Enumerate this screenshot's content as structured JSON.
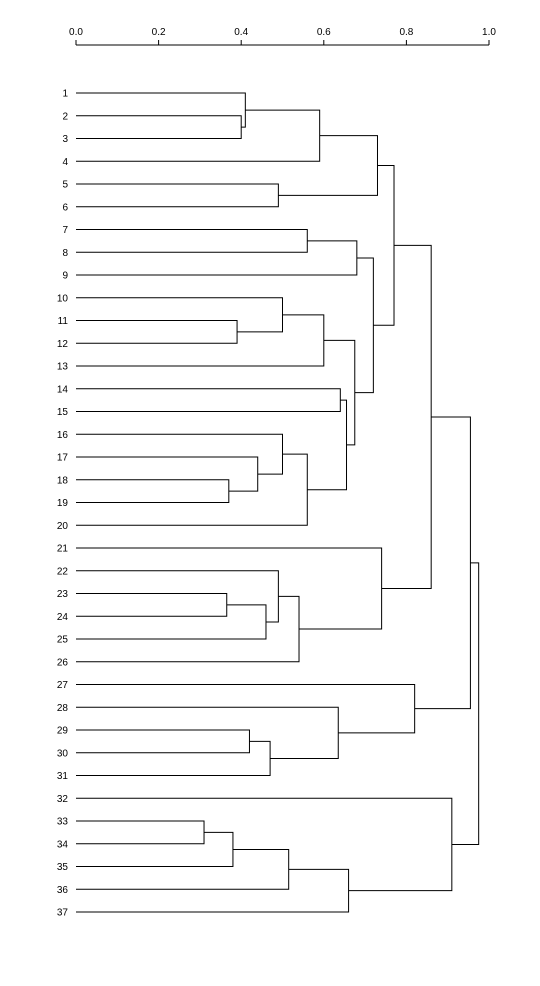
{
  "chart_data": {
    "type": "dendrogram",
    "orientation": "horizontal",
    "xlim": [
      0.0,
      1.0
    ],
    "axis_ticks": [
      "0.0",
      "0.2",
      "0.4",
      "0.6",
      "0.8",
      "1.0"
    ],
    "leaves": [
      "1",
      "2",
      "3",
      "4",
      "5",
      "6",
      "7",
      "8",
      "9",
      "10",
      "11",
      "12",
      "13",
      "14",
      "15",
      "16",
      "17",
      "18",
      "19",
      "20",
      "21",
      "22",
      "23",
      "24",
      "25",
      "26",
      "27",
      "28",
      "29",
      "30",
      "31",
      "32",
      "33",
      "34",
      "35",
      "36",
      "37"
    ],
    "merges": [
      {
        "id": "A",
        "left": "2",
        "right": "3",
        "height": 0.4
      },
      {
        "id": "B",
        "left": "1",
        "right": "A",
        "height": 0.41
      },
      {
        "id": "C",
        "left": "B",
        "right": "4",
        "height": 0.59
      },
      {
        "id": "D",
        "left": "5",
        "right": "6",
        "height": 0.49
      },
      {
        "id": "E",
        "left": "C",
        "right": "D",
        "height": 0.73
      },
      {
        "id": "F",
        "left": "7",
        "right": "8",
        "height": 0.56
      },
      {
        "id": "G",
        "left": "F",
        "right": "9",
        "height": 0.68
      },
      {
        "id": "H",
        "left": "11",
        "right": "12",
        "height": 0.39
      },
      {
        "id": "I",
        "left": "10",
        "right": "H",
        "height": 0.5
      },
      {
        "id": "J",
        "left": "I",
        "right": "13",
        "height": 0.6
      },
      {
        "id": "K",
        "left": "14",
        "right": "15",
        "height": 0.64
      },
      {
        "id": "L",
        "left": "18",
        "right": "19",
        "height": 0.37
      },
      {
        "id": "M",
        "left": "17",
        "right": "L",
        "height": 0.44
      },
      {
        "id": "N",
        "left": "16",
        "right": "M",
        "height": 0.5
      },
      {
        "id": "O",
        "left": "N",
        "right": "20",
        "height": 0.56
      },
      {
        "id": "P",
        "left": "K",
        "right": "O",
        "height": 0.655
      },
      {
        "id": "Q",
        "left": "J",
        "right": "P",
        "height": 0.675
      },
      {
        "id": "R",
        "left": "G",
        "right": "Q",
        "height": 0.72
      },
      {
        "id": "S",
        "left": "E",
        "right": "R",
        "height": 0.77
      },
      {
        "id": "T",
        "left": "23",
        "right": "24",
        "height": 0.365
      },
      {
        "id": "U",
        "left": "T",
        "right": "25",
        "height": 0.46
      },
      {
        "id": "V",
        "left": "22",
        "right": "U",
        "height": 0.49
      },
      {
        "id": "W",
        "left": "V",
        "right": "26",
        "height": 0.54
      },
      {
        "id": "X",
        "left": "21",
        "right": "W",
        "height": 0.74
      },
      {
        "id": "Y",
        "left": "S",
        "right": "X",
        "height": 0.86
      },
      {
        "id": "Z",
        "left": "29",
        "right": "30",
        "height": 0.42
      },
      {
        "id": "AA",
        "left": "Z",
        "right": "31",
        "height": 0.47
      },
      {
        "id": "AB",
        "left": "28",
        "right": "AA",
        "height": 0.635
      },
      {
        "id": "AC",
        "left": "27",
        "right": "AB",
        "height": 0.82
      },
      {
        "id": "AD",
        "left": "Y",
        "right": "AC",
        "height": 0.955
      },
      {
        "id": "AE",
        "left": "33",
        "right": "34",
        "height": 0.31
      },
      {
        "id": "AF",
        "left": "AE",
        "right": "35",
        "height": 0.38
      },
      {
        "id": "AG",
        "left": "AF",
        "right": "36",
        "height": 0.515
      },
      {
        "id": "AH",
        "left": "AG",
        "right": "37",
        "height": 0.66
      },
      {
        "id": "AI",
        "left": "32",
        "right": "AH",
        "height": 0.91
      },
      {
        "id": "AJ",
        "left": "AD",
        "right": "AI",
        "height": 0.975
      }
    ]
  }
}
